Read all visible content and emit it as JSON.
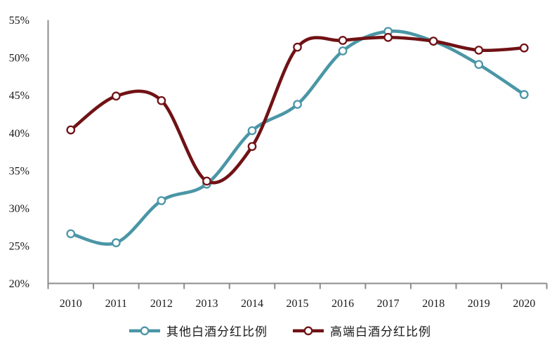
{
  "chart_data": {
    "type": "line",
    "title": "",
    "categories": [
      "2010",
      "2011",
      "2012",
      "2013",
      "2014",
      "2015",
      "2016",
      "2017",
      "2018",
      "2019",
      "2020"
    ],
    "series": [
      {
        "name": "其他白酒分红比例",
        "color": "#4A96A6",
        "values": [
          26.6,
          25.4,
          31.0,
          33.2,
          40.3,
          43.8,
          50.9,
          53.5,
          52.2,
          49.1,
          45.1
        ]
      },
      {
        "name": "高端白酒分红比例",
        "color": "#701215",
        "values": [
          40.4,
          44.9,
          44.3,
          33.6,
          38.2,
          51.4,
          52.3,
          52.7,
          52.2,
          51.0,
          51.3
        ]
      }
    ],
    "xlabel": "",
    "ylabel": "",
    "ylim": [
      20,
      55
    ],
    "ytick_step": 5,
    "ytick_labels": [
      "20%",
      "25%",
      "30%",
      "35%",
      "40%",
      "45%",
      "50%",
      "55%"
    ],
    "grid": false,
    "legend_position": "bottom",
    "marker_style": "open-circle",
    "axis_color": "#8C8C8C",
    "text_color": "#1a1a1a"
  }
}
